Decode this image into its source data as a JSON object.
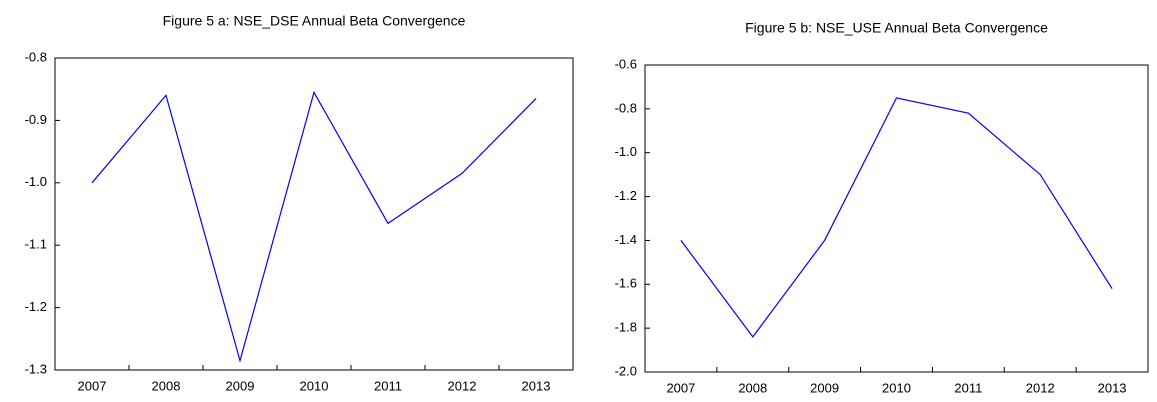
{
  "chart_data": [
    {
      "type": "line",
      "title": "Figure 5 a: NSE_DSE Annual Beta Convergence",
      "categories": [
        "2007",
        "2008",
        "2009",
        "2010",
        "2011",
        "2012",
        "2013"
      ],
      "values": [
        -1.0,
        -0.86,
        -1.285,
        -0.855,
        -1.065,
        -0.985,
        -0.865
      ],
      "color": "#0000ff",
      "ylim": [
        -1.3,
        -0.8
      ],
      "yticks": [
        -0.8,
        -0.9,
        {
          "value": -1.0,
          "label": "-1.0"
        },
        -1.1,
        -1.2,
        -1.3
      ]
    },
    {
      "type": "line",
      "title": "Figure 5 b: NSE_USE Annual Beta Convergence",
      "categories": [
        "2007",
        "2008",
        "2009",
        "2010",
        "2011",
        "2012",
        "2013"
      ],
      "values": [
        -1.4,
        -1.84,
        -1.4,
        -0.75,
        -0.82,
        -1.1,
        -1.62
      ],
      "color": "#0000ff",
      "ylim": [
        -2.0,
        -0.6
      ],
      "yticks": [
        -0.6,
        -0.8,
        {
          "value": -1.0,
          "label": "-1.0"
        },
        -1.2,
        -1.4,
        -1.6,
        -1.8,
        {
          "value": -2.0,
          "label": "-2.0"
        }
      ]
    }
  ]
}
